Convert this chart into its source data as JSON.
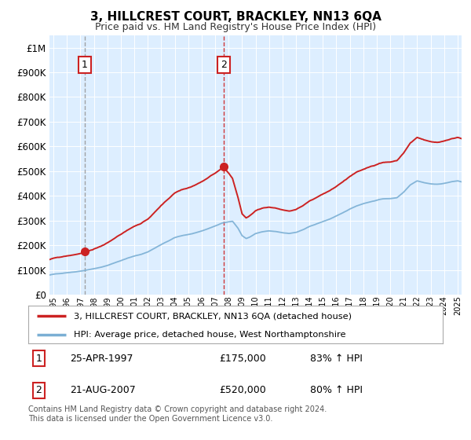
{
  "title": "3, HILLCREST COURT, BRACKLEY, NN13 6QA",
  "subtitle": "Price paid vs. HM Land Registry's House Price Index (HPI)",
  "legend_line1": "3, HILLCREST COURT, BRACKLEY, NN13 6QA (detached house)",
  "legend_line2": "HPI: Average price, detached house, West Northamptonshire",
  "footnote": "Contains HM Land Registry data © Crown copyright and database right 2024.\nThis data is licensed under the Open Government Licence v3.0.",
  "transaction1_label": "1",
  "transaction1_date": "25-APR-1997",
  "transaction1_price": "£175,000",
  "transaction1_hpi": "83% ↑ HPI",
  "transaction2_label": "2",
  "transaction2_date": "21-AUG-2007",
  "transaction2_price": "£520,000",
  "transaction2_hpi": "80% ↑ HPI",
  "transaction1_year": 1997.32,
  "transaction1_value": 175000,
  "transaction2_year": 2007.64,
  "transaction2_value": 520000,
  "hpi_color": "#7bafd4",
  "price_color": "#cc2222",
  "dash1_color": "#999999",
  "dash2_color": "#cc2222",
  "background_color": "#ddeeff",
  "ylim": [
    0,
    1050000
  ],
  "xlim_start": 1994.7,
  "xlim_end": 2025.3
}
